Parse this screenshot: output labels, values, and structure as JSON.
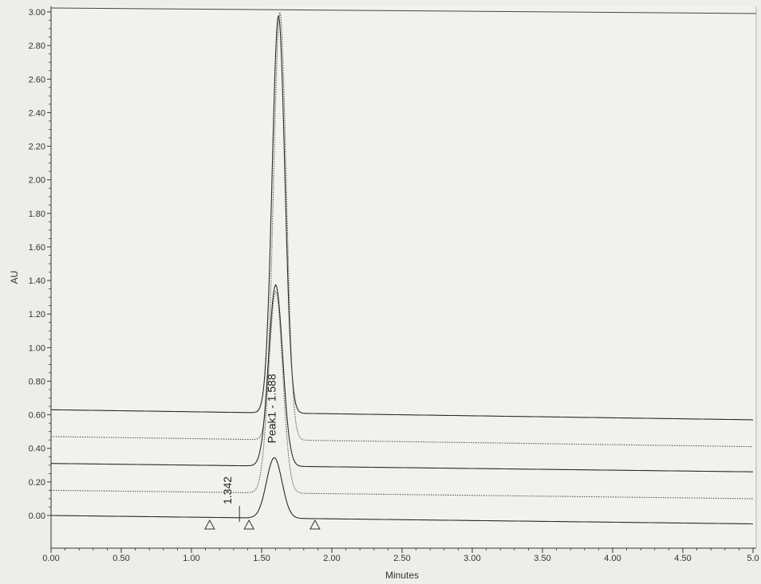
{
  "chart_data": {
    "type": "line",
    "title": "",
    "xlabel": "Minutes",
    "ylabel": "AU",
    "xlim": [
      0.0,
      5.0
    ],
    "ylim": [
      -0.2,
      3.0
    ],
    "x_ticks": [
      "0.00",
      "0.50",
      "1.00",
      "1.50",
      "2.00",
      "2.50",
      "3.00",
      "3.50",
      "4.00",
      "4.50",
      "5.0"
    ],
    "y_ticks": [
      "0.00",
      "0.20",
      "0.40",
      "0.60",
      "0.80",
      "1.00",
      "1.20",
      "1.40",
      "1.60",
      "1.80",
      "2.00",
      "2.20",
      "2.40",
      "2.60",
      "2.80",
      "3.00"
    ],
    "grid": false,
    "series": [
      {
        "baseline_start": 0.63,
        "baseline_end": 0.57,
        "peak_x": 1.62,
        "peak_height": 2.37,
        "width": 0.045,
        "style": "solid"
      },
      {
        "baseline_start": 0.47,
        "baseline_end": 0.41,
        "peak_x": 1.63,
        "peak_height": 2.55,
        "width": 0.045,
        "style": "dotted"
      },
      {
        "baseline_start": 0.31,
        "baseline_end": 0.26,
        "peak_x": 1.6,
        "peak_height": 1.08,
        "width": 0.05,
        "style": "solid"
      },
      {
        "baseline_start": 0.15,
        "baseline_end": 0.1,
        "peak_x": 1.6,
        "peak_height": 1.2,
        "width": 0.05,
        "style": "dotted"
      },
      {
        "baseline_start": 0.0,
        "baseline_end": -0.05,
        "peak_x": 1.59,
        "peak_height": 0.36,
        "width": 0.055,
        "style": "solid"
      }
    ],
    "annotations": [
      {
        "text": "1.342",
        "x": 1.342,
        "y": 0.0
      },
      {
        "text": "Peak1 - 1.588",
        "x": 1.588,
        "y": 0.43
      }
    ],
    "triangle_markers": [
      1.13,
      1.41,
      1.88
    ]
  }
}
